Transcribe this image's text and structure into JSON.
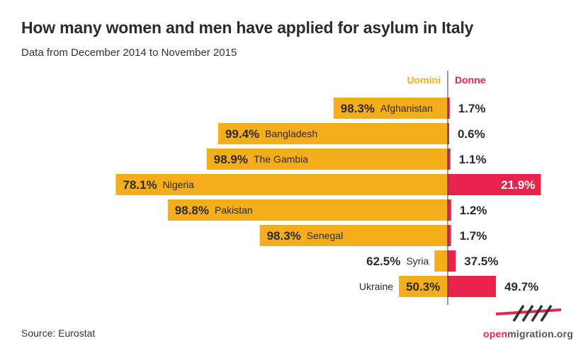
{
  "header": {
    "title": "How many women and men have applied for asylum in Italy",
    "subtitle": "Data from December 2014 to November 2015"
  },
  "footer": {
    "source": "Source: Eurostat",
    "brand_prefix": "open",
    "brand_suffix": "migration.org"
  },
  "colors": {
    "men": "#f5ad1b",
    "women": "#e8224a",
    "divider": "#333333",
    "text_dark": "#2b2b2b"
  },
  "chart_data": {
    "type": "bar",
    "orientation": "horizontal-diverging",
    "value_unit": "%",
    "categories": [
      "Afghanistan",
      "Bangladesh",
      "The Gambia",
      "Nigeria",
      "Pakistan",
      "Senegal",
      "Syria",
      "Ukraine"
    ],
    "series": [
      {
        "name": "Uomini",
        "values": [
          98.3,
          99.4,
          98.9,
          78.1,
          98.8,
          98.3,
          62.5,
          50.3
        ]
      },
      {
        "name": "Donne",
        "values": [
          1.7,
          0.6,
          1.1,
          21.9,
          1.2,
          1.7,
          37.5,
          49.7
        ]
      }
    ],
    "data_labels": {
      "Uomini": [
        "98.3%",
        "99.4%",
        "98.9%",
        "78.1%",
        "98.8%",
        "98.3%",
        "62.5%",
        "50.3%"
      ],
      "Donne": [
        "1.7%",
        "0.6%",
        "1.1%",
        "21.9%",
        "1.2%",
        "1.7%",
        "37.5%",
        "49.7%"
      ]
    },
    "count_scale_note": "bar lengths proportional to number of applicants",
    "relative_totals": [
      1.64,
      3.26,
      3.44,
      6.0,
      4.0,
      2.7,
      0.3,
      1.37
    ]
  }
}
